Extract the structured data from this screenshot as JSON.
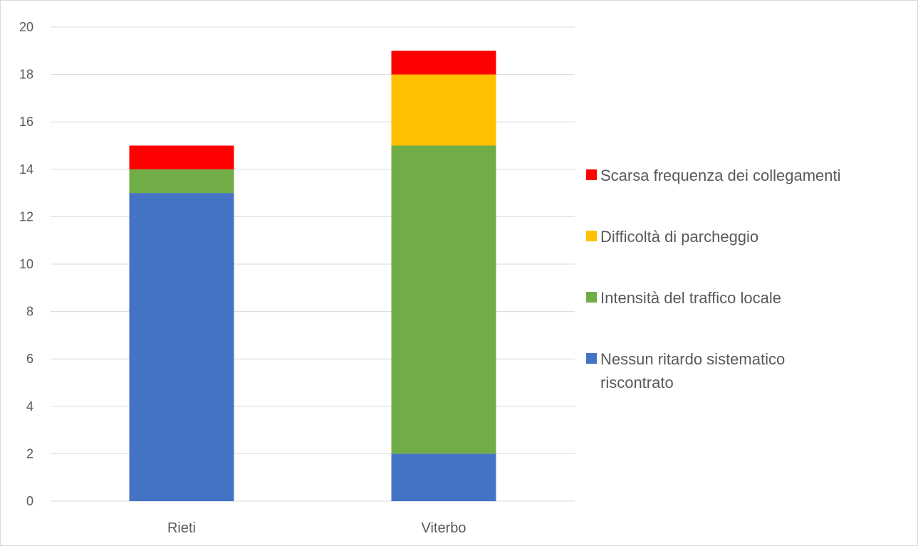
{
  "chart_data": {
    "type": "bar",
    "stacked": true,
    "categories": [
      "Rieti",
      "Viterbo"
    ],
    "series": [
      {
        "name": "Nessun ritardo sistematico riscontrato",
        "values": [
          13,
          2
        ],
        "color": "#4472c4",
        "legend_lines": [
          "Nessun ritardo sistematico",
          "riscontrato"
        ]
      },
      {
        "name": "Intensità del traffico locale",
        "values": [
          1,
          13
        ],
        "color": "#70ad47",
        "legend_lines": [
          "Intensità del traffico locale"
        ]
      },
      {
        "name": "Difficoltà di parcheggio",
        "values": [
          0,
          3
        ],
        "color": "#ffc000",
        "legend_lines": [
          "Difficoltà di parcheggio"
        ]
      },
      {
        "name": "Scarsa frequenza dei collegamenti",
        "values": [
          1,
          1
        ],
        "color": "#ff0000",
        "legend_lines": [
          "Scarsa frequenza dei collegamenti"
        ]
      }
    ],
    "ylim": [
      0,
      20
    ],
    "yticks": [
      0,
      2,
      4,
      6,
      8,
      10,
      12,
      14,
      16,
      18,
      20
    ],
    "grid": true,
    "legend_position": "right",
    "title": "",
    "xlabel": "",
    "ylabel": ""
  }
}
